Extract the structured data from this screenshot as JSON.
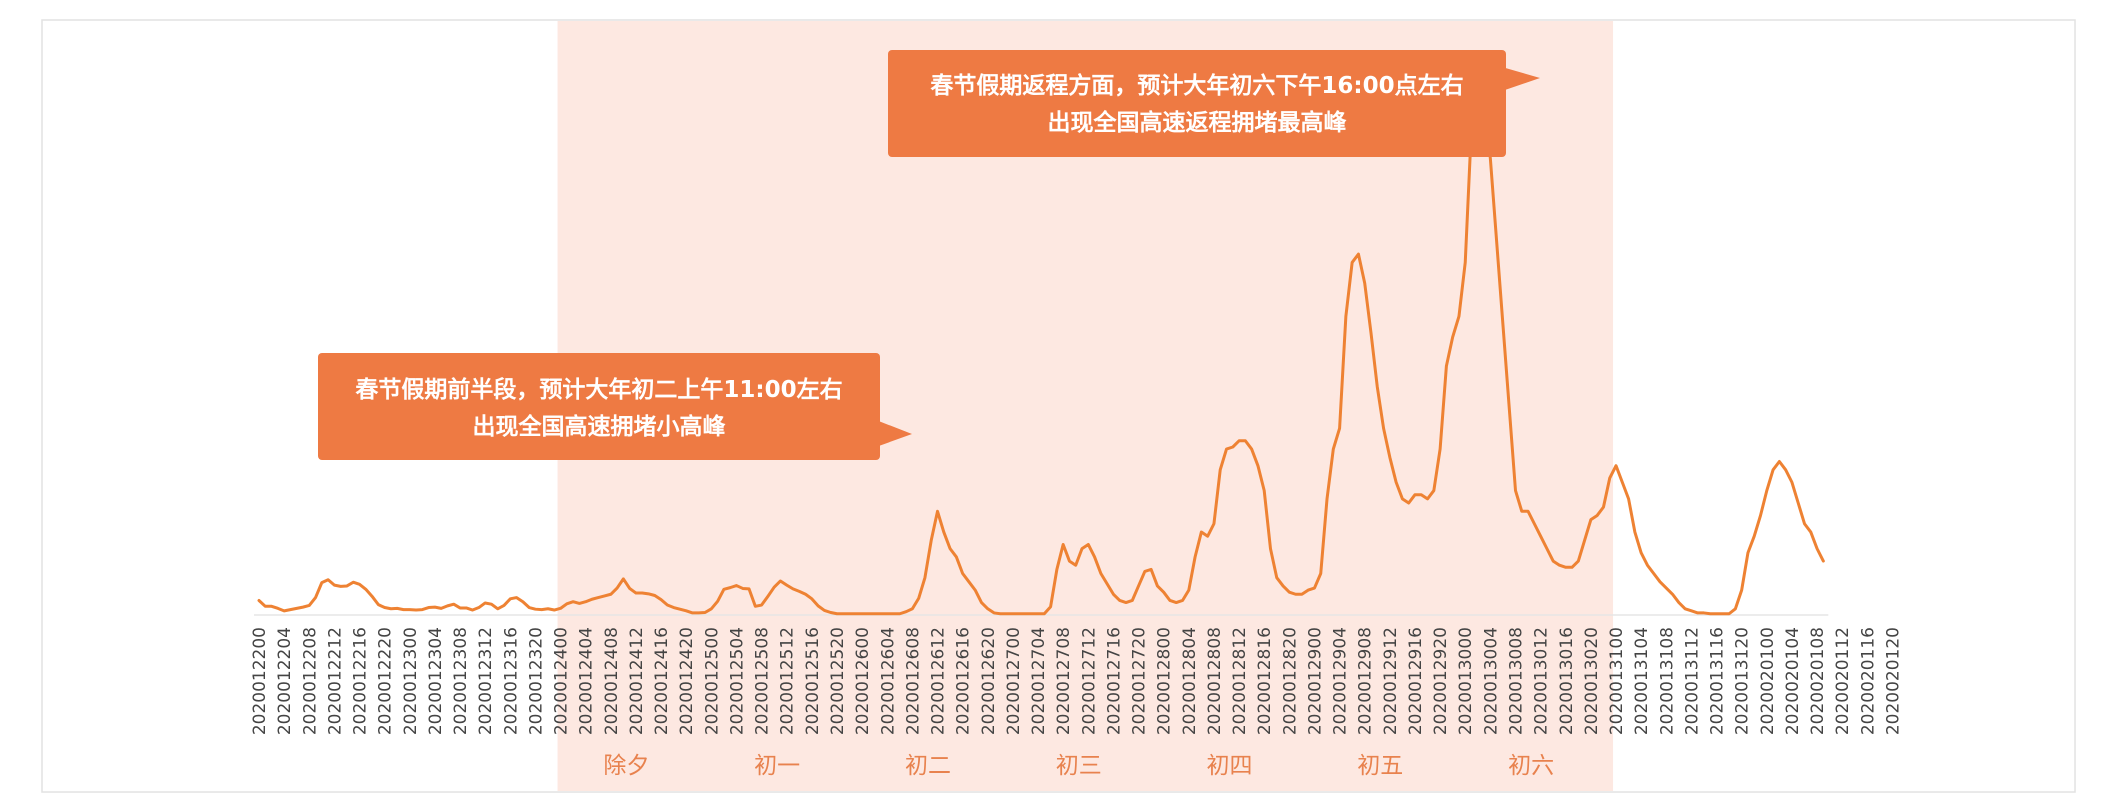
{
  "chart_data": {
    "type": "line",
    "title": "",
    "xlabel": "",
    "ylabel": "",
    "x_tick_labels": [
      "2020012200",
      "2020012204",
      "2020012208",
      "2020012212",
      "2020012216",
      "2020012220",
      "2020012300",
      "2020012304",
      "2020012308",
      "2020012312",
      "2020012316",
      "2020012320",
      "2020012400",
      "2020012404",
      "2020012408",
      "2020012412",
      "2020012416",
      "2020012420",
      "2020012500",
      "2020012504",
      "2020012508",
      "2020012512",
      "2020012516",
      "2020012520",
      "2020012600",
      "2020012604",
      "2020012608",
      "2020012612",
      "2020012616",
      "2020012620",
      "2020012700",
      "2020012704",
      "2020012708",
      "2020012712",
      "2020012716",
      "2020012720",
      "2020012800",
      "2020012804",
      "2020012808",
      "2020012812",
      "2020012816",
      "2020012820",
      "2020012900",
      "2020012904",
      "2020012908",
      "2020012912",
      "2020012916",
      "2020012920",
      "2020013000",
      "2020013004",
      "2020013008",
      "2020013012",
      "2020013016",
      "2020013020",
      "2020013100",
      "2020013104",
      "2020013108",
      "2020013112",
      "2020013116",
      "2020013120",
      "2020020100",
      "2020020104",
      "2020020108",
      "2020020112",
      "2020020116",
      "2020020120"
    ],
    "points_per_tick": 4,
    "series": [
      {
        "color": "#EE8233",
        "values": [
          3.5,
          2.1,
          2.1,
          1.6,
          1.0,
          1.3,
          1.6,
          1.9,
          2.3,
          4.2,
          7.8,
          8.5,
          7.2,
          6.9,
          7.0,
          7.9,
          7.4,
          6.2,
          4.5,
          2.5,
          1.8,
          1.5,
          1.6,
          1.3,
          1.3,
          1.2,
          1.3,
          1.8,
          1.9,
          1.6,
          2.2,
          2.6,
          1.7,
          1.7,
          1.2,
          1.8,
          2.9,
          2.6,
          1.5,
          2.3,
          3.9,
          4.2,
          3.2,
          1.8,
          1.4,
          1.3,
          1.5,
          1.2,
          1.6,
          2.7,
          3.2,
          2.8,
          3.2,
          3.8,
          4.2,
          4.6,
          5.0,
          6.5,
          8.7,
          6.4,
          5.3,
          5.3,
          5.1,
          4.7,
          3.7,
          2.4,
          1.8,
          1.4,
          1.0,
          0.5,
          0.5,
          0.6,
          1.5,
          3.3,
          6.2,
          6.6,
          7.1,
          6.4,
          6.3,
          2.1,
          2.4,
          4.5,
          6.7,
          8.2,
          7.2,
          6.3,
          5.7,
          5.0,
          3.9,
          2.2,
          1.1,
          0.6,
          0.3,
          0.3,
          0.3,
          0.3,
          0.3,
          0.3,
          0.3,
          0.3,
          0.3,
          0.3,
          0.3,
          0.8,
          1.5,
          4.0,
          9.0,
          18.0,
          25.0,
          20.0,
          16.0,
          14.0,
          10.0,
          8.0,
          6.0,
          3.0,
          1.5,
          0.5,
          0.3,
          0.3,
          0.3,
          0.3,
          0.3,
          0.3,
          0.3,
          0.3,
          2.0,
          11.0,
          17.0,
          13.0,
          12.0,
          16.0,
          17.0,
          14.0,
          10.0,
          7.5,
          5.0,
          3.5,
          3.0,
          3.5,
          7.0,
          10.5,
          11.0,
          7.0,
          5.5,
          3.5,
          3.0,
          3.5,
          6.0,
          14.0,
          20.0,
          19.0,
          22.0,
          35.0,
          40.0,
          40.5,
          42.0,
          42.0,
          40.0,
          36.0,
          30.0,
          16.0,
          9.0,
          7.0,
          5.5,
          5.0,
          5.0,
          6.0,
          6.5,
          10.0,
          28.0,
          40.0,
          45.0,
          72.0,
          85.0,
          87.0,
          80.0,
          68.0,
          55.0,
          45.0,
          38.0,
          32.0,
          28.0,
          27.0,
          29.0,
          29.0,
          28.0,
          30.0,
          40.0,
          60.0,
          67.0,
          72.0,
          85.0,
          118.0,
          125.0,
          124.0,
          110.0,
          90.0,
          70.0,
          50.0,
          30.0,
          25.0,
          25.0,
          22.0,
          19.0,
          16.0,
          13.0,
          12.0,
          11.5,
          11.5,
          13.0,
          18.0,
          23.0,
          24.0,
          26.0,
          33.0,
          36.0,
          32.0,
          28.0,
          20.0,
          15.0,
          12.0,
          10.0,
          8.0,
          6.5,
          5.0,
          3.0,
          1.5,
          1.0,
          0.5,
          0.5,
          0.3,
          0.3,
          0.3,
          0.3,
          1.5,
          6.0,
          15.0,
          19.0,
          24.0,
          30.0,
          35.0,
          37.0,
          35.0,
          32.0,
          27.0,
          22.0,
          20.0,
          16.0,
          13.0
        ]
      }
    ],
    "ylim": [
      0,
      135
    ],
    "grid": false,
    "day_labels": [
      "除夕",
      "初一",
      "初二",
      "初三",
      "初四",
      "初五",
      "初六"
    ],
    "highlight_range": [
      "2020012400",
      "2020013100"
    ],
    "highlight_color": "#FDE8E1",
    "annotations": [
      {
        "lines": [
          "春节假期前半段，预计大年初二上午11:00左右",
          "出现全国高速拥堵小高峰"
        ],
        "color": "#EE7A43",
        "pointer": "right"
      },
      {
        "lines": [
          "春节假期返程方面，预计大年初六下午16:00点左右",
          "出现全国高速返程拥堵最高峰"
        ],
        "color": "#EE7A43",
        "pointer": "right"
      }
    ]
  }
}
